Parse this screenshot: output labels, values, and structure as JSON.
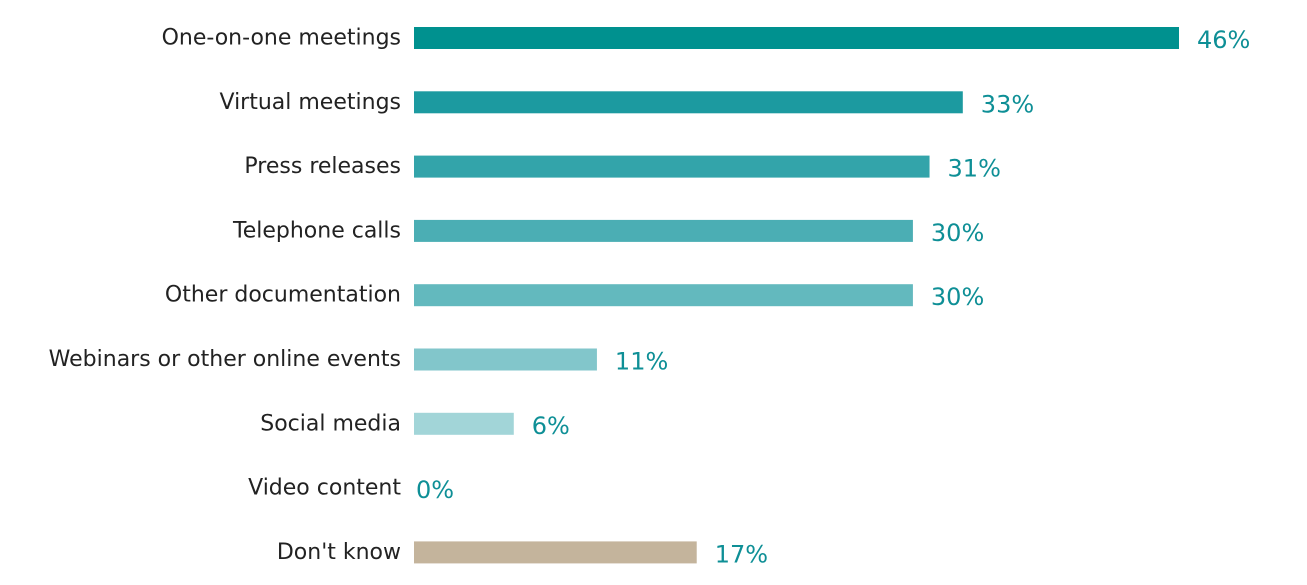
{
  "chart_data": {
    "type": "bar",
    "orientation": "horizontal",
    "title": "",
    "xlabel": "",
    "ylabel": "",
    "categories": [
      "One-on-one meetings",
      "Virtual meetings",
      "Press releases",
      "Telephone calls",
      "Other documentation",
      "Webinars or other online events",
      "Social media",
      "Video content",
      "Don't know"
    ],
    "values": [
      46,
      33,
      31,
      30,
      30,
      11,
      6,
      0,
      17
    ],
    "value_labels": [
      "46%",
      "33%",
      "31%",
      "30%",
      "30%",
      "11%",
      "6%",
      "0%",
      "17%"
    ],
    "bar_colors": [
      "#00918f",
      "#1c9aa0",
      "#33a4aa",
      "#4baeb4",
      "#63b9be",
      "#82c6cb",
      "#a2d5d8",
      "#b8e0e2",
      "#c4b49c"
    ],
    "value_label_color": "#0e8f96",
    "xlim": [
      0,
      46
    ],
    "grid": false,
    "legend": false
  }
}
